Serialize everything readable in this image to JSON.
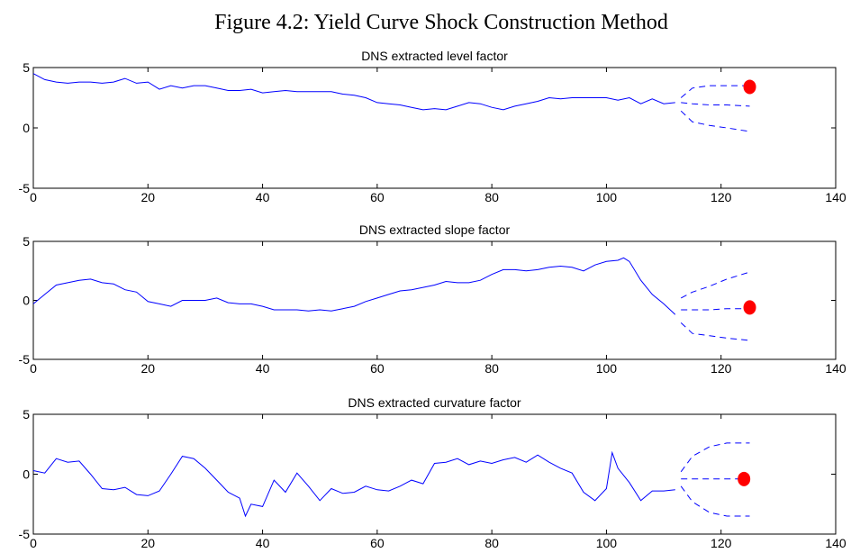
{
  "figure_title": "Figure 4.2: Yield Curve Shock Construction Method",
  "chart_data": [
    {
      "type": "line",
      "title": "DNS extracted level factor",
      "xlim": [
        0,
        140
      ],
      "ylim": [
        -5,
        5
      ],
      "xticks": [
        0,
        20,
        40,
        60,
        80,
        100,
        120,
        140
      ],
      "yticks": [
        -5,
        0,
        5
      ],
      "series": [
        {
          "color": "#0000ff",
          "style": "solid",
          "x": [
            0,
            2,
            4,
            6,
            8,
            10,
            12,
            14,
            16,
            18,
            20,
            22,
            24,
            26,
            28,
            30,
            32,
            34,
            36,
            38,
            40,
            42,
            44,
            46,
            48,
            50,
            52,
            54,
            56,
            58,
            60,
            62,
            64,
            66,
            68,
            70,
            72,
            74,
            76,
            78,
            80,
            82,
            84,
            86,
            88,
            90,
            92,
            94,
            96,
            98,
            100,
            102,
            104,
            106,
            108,
            110,
            112
          ],
          "values": [
            4.5,
            4.0,
            3.8,
            3.7,
            3.8,
            3.8,
            3.7,
            3.8,
            4.1,
            3.7,
            3.8,
            3.2,
            3.5,
            3.3,
            3.5,
            3.5,
            3.3,
            3.1,
            3.1,
            3.2,
            2.9,
            3.0,
            3.1,
            3.0,
            3.0,
            3.0,
            3.0,
            2.8,
            2.7,
            2.5,
            2.1,
            2.0,
            1.9,
            1.7,
            1.5,
            1.6,
            1.5,
            1.8,
            2.1,
            2.0,
            1.7,
            1.5,
            1.8,
            2.0,
            2.2,
            2.5,
            2.4,
            2.5,
            2.5,
            2.5,
            2.5,
            2.3,
            2.5,
            2.0,
            2.4,
            2.0,
            2.1
          ]
        },
        {
          "color": "#0000ff",
          "style": "dashed",
          "x": [
            113,
            115,
            118,
            121,
            125
          ],
          "values": [
            2.5,
            3.3,
            3.5,
            3.5,
            3.5
          ]
        },
        {
          "color": "#0000ff",
          "style": "dashed",
          "x": [
            113,
            115,
            118,
            121,
            125
          ],
          "values": [
            2.1,
            2.0,
            1.9,
            1.9,
            1.8
          ]
        },
        {
          "color": "#0000ff",
          "style": "dashed",
          "x": [
            113,
            115,
            118,
            121,
            125
          ],
          "values": [
            1.4,
            0.5,
            0.2,
            0.0,
            -0.3
          ]
        },
        {
          "color": "#ff0000",
          "style": "marker",
          "x": [
            125
          ],
          "values": [
            3.4
          ]
        }
      ]
    },
    {
      "type": "line",
      "title": "DNS extracted slope factor",
      "xlim": [
        0,
        140
      ],
      "ylim": [
        -5,
        5
      ],
      "xticks": [
        0,
        20,
        40,
        60,
        80,
        100,
        120,
        140
      ],
      "yticks": [
        -5,
        0,
        5
      ],
      "series": [
        {
          "color": "#0000ff",
          "style": "solid",
          "x": [
            0,
            2,
            4,
            6,
            8,
            10,
            12,
            14,
            16,
            18,
            20,
            22,
            24,
            26,
            28,
            30,
            32,
            34,
            36,
            38,
            40,
            42,
            44,
            46,
            48,
            50,
            52,
            54,
            56,
            58,
            60,
            62,
            64,
            66,
            68,
            70,
            72,
            74,
            76,
            78,
            80,
            82,
            84,
            86,
            88,
            90,
            92,
            94,
            96,
            98,
            100,
            102,
            103,
            104,
            106,
            108,
            110,
            112
          ],
          "values": [
            -0.3,
            0.5,
            1.3,
            1.5,
            1.7,
            1.8,
            1.5,
            1.4,
            0.9,
            0.7,
            -0.1,
            -0.3,
            -0.5,
            0,
            0,
            0,
            0.2,
            -0.2,
            -0.3,
            -0.3,
            -0.5,
            -0.8,
            -0.8,
            -0.8,
            -0.9,
            -0.8,
            -0.9,
            -0.7,
            -0.5,
            -0.1,
            0.2,
            0.5,
            0.8,
            0.9,
            1.1,
            1.3,
            1.6,
            1.5,
            1.5,
            1.7,
            2.2,
            2.6,
            2.6,
            2.5,
            2.6,
            2.8,
            2.9,
            2.8,
            2.5,
            3.0,
            3.3,
            3.4,
            3.6,
            3.3,
            1.7,
            0.5,
            -0.3,
            -1.2
          ]
        },
        {
          "color": "#0000ff",
          "style": "dashed",
          "x": [
            113,
            115,
            118,
            121,
            125
          ],
          "values": [
            0.2,
            0.7,
            1.2,
            1.8,
            2.4
          ]
        },
        {
          "color": "#0000ff",
          "style": "dashed",
          "x": [
            113,
            115,
            118,
            121,
            125
          ],
          "values": [
            -0.8,
            -0.8,
            -0.8,
            -0.7,
            -0.7
          ]
        },
        {
          "color": "#0000ff",
          "style": "dashed",
          "x": [
            113,
            115,
            118,
            121,
            125
          ],
          "values": [
            -1.9,
            -2.8,
            -3.0,
            -3.2,
            -3.4
          ]
        },
        {
          "color": "#ff0000",
          "style": "marker",
          "x": [
            125
          ],
          "values": [
            -0.6
          ]
        }
      ]
    },
    {
      "type": "line",
      "title": "DNS extracted curvature factor",
      "xlim": [
        0,
        140
      ],
      "ylim": [
        -5,
        5
      ],
      "xticks": [
        0,
        20,
        40,
        60,
        80,
        100,
        120,
        140
      ],
      "yticks": [
        -5,
        0,
        5
      ],
      "series": [
        {
          "color": "#0000ff",
          "style": "solid",
          "x": [
            0,
            2,
            4,
            6,
            8,
            10,
            12,
            14,
            16,
            18,
            20,
            22,
            24,
            26,
            28,
            30,
            32,
            34,
            36,
            37,
            38,
            40,
            42,
            44,
            46,
            48,
            50,
            52,
            54,
            56,
            58,
            60,
            62,
            64,
            66,
            68,
            70,
            72,
            74,
            76,
            78,
            80,
            82,
            84,
            86,
            88,
            90,
            92,
            94,
            96,
            98,
            100,
            101,
            102,
            104,
            106,
            108,
            110,
            112
          ],
          "values": [
            0.3,
            0.1,
            1.3,
            1.0,
            1.1,
            0,
            -1.2,
            -1.3,
            -1.1,
            -1.7,
            -1.8,
            -1.4,
            0,
            1.5,
            1.3,
            0.5,
            -0.5,
            -1.5,
            -2.0,
            -3.5,
            -2.5,
            -2.7,
            -0.5,
            -1.5,
            0.1,
            -1.0,
            -2.2,
            -1.2,
            -1.6,
            -1.5,
            -1.0,
            -1.3,
            -1.4,
            -1.0,
            -0.5,
            -0.8,
            0.9,
            1.0,
            1.3,
            0.8,
            1.1,
            0.9,
            1.2,
            1.4,
            1.0,
            1.6,
            1.0,
            0.5,
            0.1,
            -1.5,
            -2.2,
            -1.2,
            1.8,
            0.5,
            -0.7,
            -2.2,
            -1.4,
            -1.4,
            -1.3
          ]
        },
        {
          "color": "#0000ff",
          "style": "dashed",
          "x": [
            113,
            115,
            118,
            121,
            125
          ],
          "values": [
            0.2,
            1.5,
            2.3,
            2.6,
            2.6
          ]
        },
        {
          "color": "#0000ff",
          "style": "dashed",
          "x": [
            113,
            115,
            118,
            121,
            125
          ],
          "values": [
            -0.4,
            -0.4,
            -0.4,
            -0.4,
            -0.4
          ]
        },
        {
          "color": "#0000ff",
          "style": "dashed",
          "x": [
            113,
            115,
            118,
            121,
            125
          ],
          "values": [
            -1.0,
            -2.3,
            -3.2,
            -3.5,
            -3.5
          ]
        },
        {
          "color": "#ff0000",
          "style": "marker",
          "x": [
            124
          ],
          "values": [
            -0.4
          ]
        }
      ]
    }
  ]
}
